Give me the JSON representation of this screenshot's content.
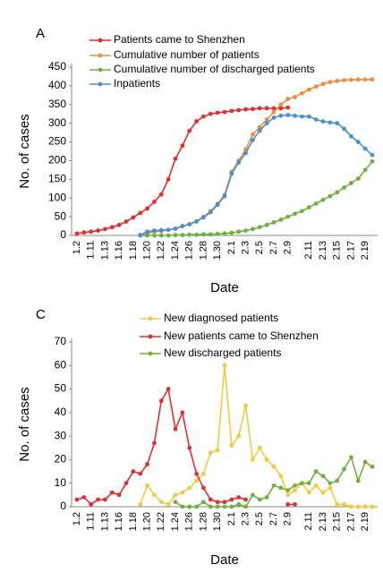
{
  "chart_data": [
    {
      "type": "line",
      "title": "A",
      "x_label": "Date",
      "y_label": "No. of cases",
      "categories": [
        "1.2",
        null,
        "1.11",
        null,
        "1.13",
        null,
        "1.16",
        null,
        "1.18",
        null,
        "1.20",
        null,
        "1.22",
        null,
        "1.24",
        null,
        "1.26",
        null,
        "1.28",
        null,
        "1.30",
        null,
        "2.1",
        null,
        "2.3",
        null,
        "2.5",
        null,
        "2.7",
        null,
        "2.9",
        null,
        null,
        "2.11",
        null,
        "2.13",
        null,
        "2.15",
        null,
        "2.17",
        null,
        "2.19",
        null
      ],
      "ylim": [
        0,
        450
      ],
      "yticks": [
        0,
        50,
        100,
        150,
        200,
        250,
        300,
        350,
        400,
        450
      ],
      "series": [
        {
          "name": "Patients came to Shenzhen",
          "color": "#e03030",
          "values": [
            5,
            8,
            10,
            13,
            17,
            22,
            28,
            37,
            48,
            60,
            72,
            90,
            110,
            150,
            205,
            240,
            280,
            305,
            318,
            325,
            328,
            330,
            333,
            335,
            337,
            338,
            340,
            340,
            340,
            340,
            342,
            null,
            null,
            null,
            null,
            null,
            null,
            null,
            null,
            null,
            null,
            null,
            null
          ]
        },
        {
          "name": "Cumulative number of patients",
          "color": "#f08c40",
          "values": [
            null,
            null,
            null,
            null,
            null,
            null,
            null,
            null,
            null,
            1,
            5,
            10,
            12,
            15,
            18,
            25,
            30,
            38,
            50,
            65,
            85,
            108,
            170,
            200,
            230,
            270,
            290,
            310,
            330,
            350,
            365,
            370,
            380,
            390,
            398,
            405,
            410,
            413,
            415,
            416,
            417,
            417,
            417
          ]
        },
        {
          "name": "Cumulative number of discharged patients",
          "color": "#70b040",
          "values": [
            null,
            null,
            null,
            null,
            null,
            null,
            null,
            null,
            null,
            0,
            0,
            0,
            0,
            0,
            1,
            1,
            2,
            2,
            3,
            3,
            4,
            5,
            7,
            10,
            13,
            17,
            22,
            28,
            35,
            42,
            50,
            58,
            65,
            75,
            85,
            95,
            105,
            115,
            128,
            140,
            152,
            175,
            198
          ]
        },
        {
          "name": "Inpatients",
          "color": "#4a90d0",
          "values": [
            null,
            null,
            null,
            null,
            null,
            null,
            null,
            null,
            null,
            1,
            10,
            13,
            14,
            15,
            18,
            25,
            30,
            37,
            48,
            62,
            82,
            105,
            165,
            195,
            220,
            255,
            280,
            300,
            315,
            320,
            322,
            320,
            318,
            318,
            310,
            305,
            302,
            300,
            285,
            265,
            250,
            232,
            215
          ]
        }
      ]
    },
    {
      "type": "line",
      "title": "C",
      "x_label": "Date",
      "y_label": "No. of cases",
      "categories": [
        "1.2",
        null,
        "1.11",
        null,
        "1.13",
        null,
        "1.16",
        null,
        "1.18",
        null,
        "1.20",
        null,
        "1.22",
        null,
        "1.24",
        null,
        "1.26",
        null,
        "1.28",
        null,
        "1.30",
        null,
        "2.1",
        null,
        "2.3",
        null,
        "2.5",
        null,
        "2.7",
        null,
        "2.9",
        null,
        null,
        "2.11",
        null,
        "2.13",
        null,
        "2.15",
        null,
        "2.17",
        null,
        "2.19",
        null
      ],
      "ylim": [
        0,
        70
      ],
      "yticks": [
        0,
        10,
        20,
        30,
        40,
        50,
        60,
        70
      ],
      "series": [
        {
          "name": "New diagnosed patients",
          "color": "#f5c842",
          "values": [
            null,
            null,
            null,
            null,
            null,
            null,
            null,
            null,
            null,
            1,
            9,
            5,
            2,
            1,
            5,
            6,
            8,
            11,
            14,
            23,
            24,
            60,
            26,
            30,
            43,
            20,
            25,
            20,
            17,
            13,
            5,
            7,
            10,
            6,
            9,
            6,
            8,
            1,
            1,
            0,
            0,
            0,
            0
          ]
        },
        {
          "name": "New patients came to Shenzhen",
          "color": "#e03030",
          "values": [
            3,
            4,
            1,
            3,
            3,
            6,
            5,
            10,
            15,
            14,
            18,
            27,
            45,
            50,
            33,
            40,
            25,
            14,
            8,
            3,
            2,
            2,
            3,
            4,
            3,
            null,
            null,
            null,
            null,
            null,
            1,
            1,
            null,
            null,
            null,
            null,
            null,
            null,
            null,
            null,
            null,
            null,
            null
          ]
        },
        {
          "name": "New discharged patients",
          "color": "#70b040",
          "values": [
            null,
            null,
            null,
            null,
            null,
            null,
            null,
            null,
            null,
            null,
            null,
            null,
            null,
            null,
            2,
            0,
            0,
            0,
            2,
            0,
            0,
            0,
            0,
            1,
            0,
            5,
            3,
            4,
            9,
            8,
            7,
            9,
            10,
            10,
            15,
            13,
            10,
            11,
            16,
            21,
            11,
            19,
            17
          ]
        }
      ]
    }
  ]
}
